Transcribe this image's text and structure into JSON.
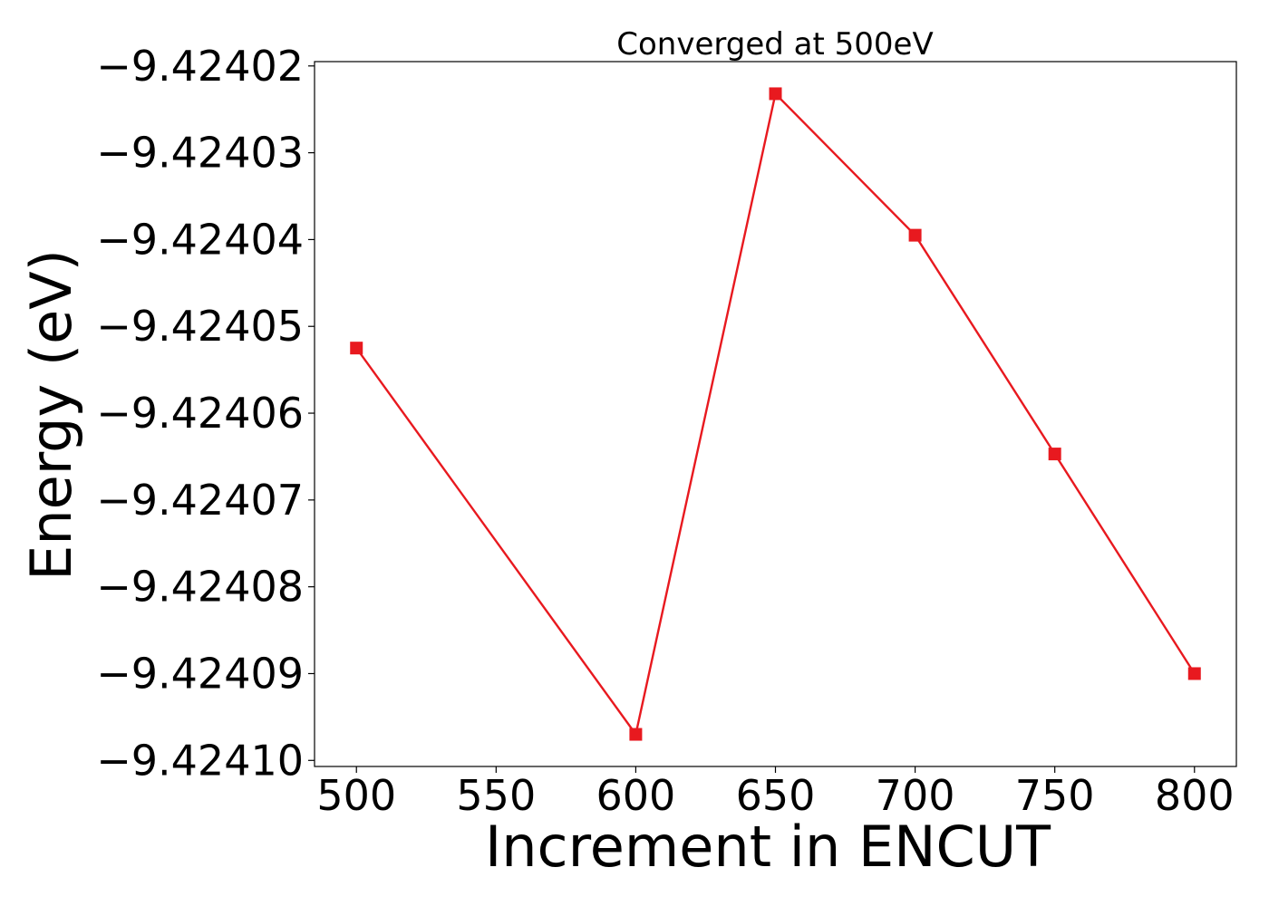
{
  "chart_data": {
    "type": "line",
    "title": "Converged at 500eV",
    "xlabel": "Increment in ENCUT",
    "ylabel": "Energy (eV)",
    "x": [
      500,
      600,
      650,
      700,
      750,
      800
    ],
    "series": [
      {
        "values": [
          -9.4240525,
          -9.424097,
          -9.4240232,
          -9.4240395,
          -9.4240647,
          -9.42409
        ],
        "color": "#e8191f",
        "marker": "square"
      }
    ],
    "xticks": [
      500,
      550,
      600,
      650,
      700,
      750,
      800
    ],
    "xtick_labels": [
      "500",
      "550",
      "600",
      "650",
      "700",
      "750",
      "800"
    ],
    "yticks": [
      -9.42402,
      -9.42403,
      -9.42404,
      -9.42405,
      -9.42406,
      -9.42407,
      -9.42408,
      -9.42409,
      -9.4241
    ],
    "ytick_labels": [
      "−9.42402",
      "−9.42403",
      "−9.42404",
      "−9.42405",
      "−9.42406",
      "−9.42407",
      "−9.42408",
      "−9.42409",
      "−9.42410"
    ],
    "xlim": [
      485,
      815
    ],
    "ylim": [
      -9.4241007,
      -9.4240195
    ],
    "grid": false,
    "legend": "none"
  }
}
